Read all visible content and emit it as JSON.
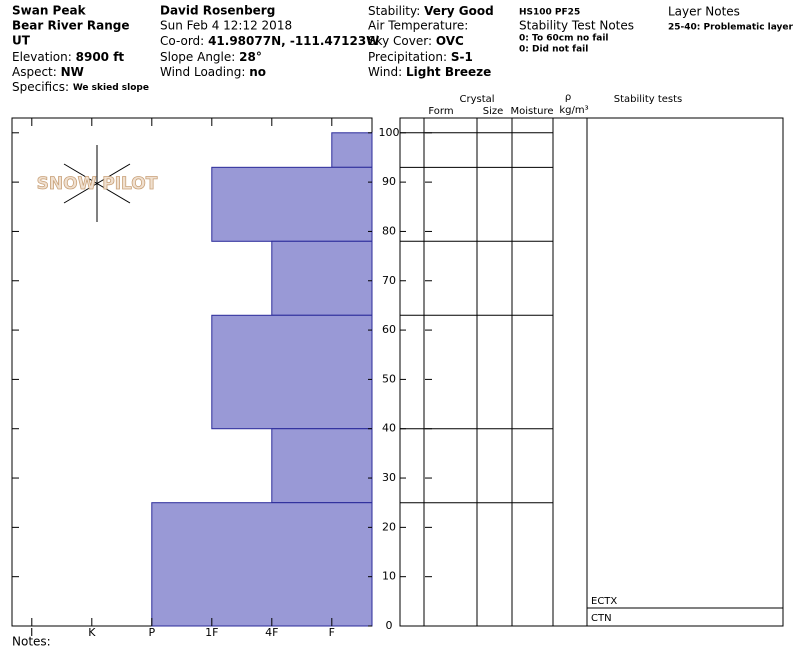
{
  "header": {
    "col1": {
      "site": "Swan Peak",
      "range": "Bear River Range",
      "state": "UT",
      "elevation_label": "Elevation:",
      "elevation": "8900 ft",
      "aspect_label": "Aspect:",
      "aspect": "NW",
      "specifics_label": "Specifics:",
      "specifics": "We skied slope"
    },
    "col2": {
      "observer": "David Rosenberg",
      "date": "Sun Feb 4 12:12 2018",
      "coord_label": "Co-ord:",
      "coord": "41.98077N, -111.47123W",
      "slope_label": "Slope Angle:",
      "slope": "28°",
      "wind_loading_label": "Wind Loading:",
      "wind_loading": "no"
    },
    "col3": {
      "stability_label": "Stability:",
      "stability": "Very Good",
      "air_temp_label": "Air Temperature:",
      "sky_label": "Sky Cover:",
      "sky": "OVC",
      "precip_label": "Precipitation:",
      "precip": "S-1",
      "wind_label": "Wind:",
      "wind": "Light Breeze"
    },
    "col4": {
      "hs": "HS100 PF25",
      "test_notes_title": "Stability Test Notes",
      "note1": "0: To 60cm no fail",
      "note2": "0: Did not fail"
    },
    "col5": {
      "title": "Layer Notes",
      "note1": "25-40: Problematic layer"
    }
  },
  "logo": "SNOW PILOT",
  "table_headers": {
    "crystal": "Crystal",
    "form": "Form",
    "size": "Size",
    "moisture": "Moisture",
    "rho": "ρ",
    "density_unit": "kg/m³",
    "stability_tests": "Stability tests"
  },
  "stability_tests": [
    "ECTX",
    "CTN"
  ],
  "notes_label": "Notes:",
  "chart_data": {
    "type": "hardness_profile",
    "color": "#9999d6",
    "edge_color": "#2a2a9a",
    "ylim": [
      0,
      103
    ],
    "yticks": [
      0,
      10,
      20,
      30,
      40,
      50,
      60,
      70,
      80,
      90,
      100
    ],
    "xlim": [
      6.33,
      0.33
    ],
    "xticks": [
      {
        "value": 6,
        "label": "I"
      },
      {
        "value": 5,
        "label": "K"
      },
      {
        "value": 4,
        "label": "P"
      },
      {
        "value": 3,
        "label": "1F"
      },
      {
        "value": 2,
        "label": "4F"
      },
      {
        "value": 1,
        "label": "F"
      }
    ],
    "layers": [
      {
        "top": 100,
        "bottom": 93,
        "hardness": 1
      },
      {
        "top": 93,
        "bottom": 78,
        "hardness": 3
      },
      {
        "top": 78,
        "bottom": 63,
        "hardness": 2
      },
      {
        "top": 63,
        "bottom": 40,
        "hardness": 3
      },
      {
        "top": 40,
        "bottom": 25,
        "hardness": 2
      },
      {
        "top": 25,
        "bottom": 0,
        "hardness": 4
      }
    ]
  }
}
